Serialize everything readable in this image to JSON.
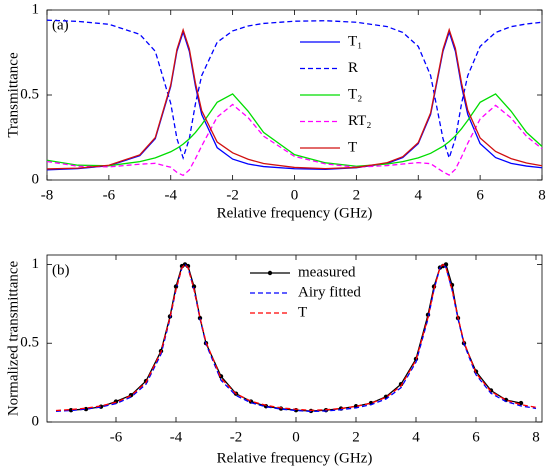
{
  "chart_data": [
    {
      "type": "line",
      "panel_label": "(a)",
      "xlabel": "Relative frequency (GHz)",
      "ylabel": "Transmittance",
      "xlim": [
        -8,
        8
      ],
      "ylim": [
        0,
        1
      ],
      "xticks": [
        -8,
        -6,
        -4,
        -2,
        0,
        2,
        4,
        6,
        8
      ],
      "yticks": [
        0,
        0.5,
        1
      ],
      "legend": "top-center",
      "x": [
        -8,
        -7,
        -6,
        -5,
        -4.5,
        -4,
        -3.8,
        -3.6,
        -3.4,
        -3.2,
        -3,
        -2.5,
        -2,
        -1.5,
        -1,
        0,
        1,
        2,
        3,
        3.5,
        4,
        4.4,
        4.8,
        5,
        5.2,
        5.4,
        5.6,
        6,
        6.5,
        7,
        7.5,
        8
      ],
      "series": [
        {
          "name": "T₁",
          "color": "#0000ff",
          "style": "solid",
          "values": [
            0.06,
            0.067,
            0.084,
            0.143,
            0.243,
            0.55,
            0.757,
            0.87,
            0.757,
            0.55,
            0.386,
            0.19,
            0.123,
            0.094,
            0.079,
            0.066,
            0.063,
            0.072,
            0.098,
            0.132,
            0.214,
            0.386,
            0.757,
            0.87,
            0.757,
            0.55,
            0.386,
            0.214,
            0.132,
            0.098,
            0.082,
            0.072
          ]
        },
        {
          "name": "R",
          "color": "#0000ff",
          "style": "dashed",
          "values": [
            0.94,
            0.933,
            0.916,
            0.857,
            0.757,
            0.45,
            0.243,
            0.13,
            0.243,
            0.45,
            0.614,
            0.81,
            0.877,
            0.906,
            0.921,
            0.934,
            0.937,
            0.928,
            0.902,
            0.868,
            0.786,
            0.614,
            0.243,
            0.13,
            0.243,
            0.45,
            0.614,
            0.786,
            0.868,
            0.902,
            0.918,
            0.928
          ]
        },
        {
          "name": "T₂",
          "color": "#00dd00",
          "style": "solid",
          "values": [
            0.116,
            0.087,
            0.084,
            0.108,
            0.13,
            0.166,
            0.186,
            0.211,
            0.242,
            0.28,
            0.326,
            0.457,
            0.506,
            0.405,
            0.28,
            0.149,
            0.101,
            0.081,
            0.094,
            0.108,
            0.13,
            0.157,
            0.198,
            0.226,
            0.26,
            0.302,
            0.351,
            0.457,
            0.506,
            0.405,
            0.28,
            0.198
          ]
        },
        {
          "name": "RT₂",
          "color": "#ff00ff",
          "style": "dashed",
          "values": [
            0.109,
            0.081,
            0.077,
            0.093,
            0.098,
            0.075,
            0.045,
            0.027,
            0.059,
            0.126,
            0.2,
            0.37,
            0.444,
            0.367,
            0.258,
            0.139,
            0.095,
            0.075,
            0.085,
            0.094,
            0.102,
            0.096,
            0.048,
            0.029,
            0.063,
            0.136,
            0.216,
            0.359,
            0.439,
            0.365,
            0.257,
            0.184
          ]
        },
        {
          "name": "T",
          "color": "#d01010",
          "style": "solid",
          "values": [
            0.065,
            0.07,
            0.087,
            0.148,
            0.25,
            0.56,
            0.768,
            0.883,
            0.772,
            0.568,
            0.408,
            0.223,
            0.16,
            0.122,
            0.097,
            0.074,
            0.067,
            0.074,
            0.102,
            0.137,
            0.22,
            0.395,
            0.769,
            0.884,
            0.774,
            0.57,
            0.41,
            0.247,
            0.168,
            0.126,
            0.1,
            0.084
          ]
        }
      ]
    },
    {
      "type": "line",
      "panel_label": "(b)",
      "xlabel": "Relative frequency (GHz)",
      "ylabel": "Normalized transmittance",
      "xlim": [
        -8.3,
        8.2
      ],
      "ylim": [
        0,
        1.06
      ],
      "xticks": [
        -6,
        -4,
        -2,
        0,
        2,
        4,
        6,
        8
      ],
      "yticks": [
        0,
        0.5,
        1
      ],
      "legend": "top-center",
      "x": [
        -8,
        -7.5,
        -7,
        -6.5,
        -6,
        -5.5,
        -5,
        -4.5,
        -4.2,
        -4,
        -3.8,
        -3.7,
        -3.6,
        -3.4,
        -3.2,
        -3,
        -2.5,
        -2,
        -1.5,
        -1,
        -0.5,
        0,
        0.5,
        1,
        1.5,
        2,
        2.5,
        3,
        3.5,
        4,
        4.4,
        4.6,
        4.8,
        4.9,
        5,
        5.2,
        5.4,
        5.6,
        6,
        6.5,
        7,
        7.5,
        8
      ],
      "series": [
        {
          "name": "measured",
          "color": "#000000",
          "style": "solid",
          "marker": "circle",
          "values": [
            null,
            0.075,
            0.082,
            0.097,
            0.13,
            0.17,
            0.26,
            0.45,
            0.67,
            0.86,
            0.99,
            1,
            0.99,
            0.86,
            0.66,
            0.5,
            0.29,
            0.18,
            0.13,
            0.1,
            0.085,
            0.075,
            0.07,
            0.075,
            0.085,
            0.1,
            0.12,
            0.16,
            0.24,
            0.4,
            0.68,
            0.86,
            0.98,
            0.99,
            1,
            0.87,
            0.66,
            0.5,
            0.32,
            0.2,
            0.14,
            0.12,
            null
          ]
        },
        {
          "name": "Airy fitted",
          "color": "#0000ff",
          "style": "dashed",
          "values": [
            0.068,
            0.073,
            0.082,
            0.095,
            0.117,
            0.158,
            0.24,
            0.43,
            0.655,
            0.84,
            0.98,
            1,
            0.98,
            0.84,
            0.655,
            0.495,
            0.265,
            0.168,
            0.122,
            0.097,
            0.082,
            0.073,
            0.067,
            0.07,
            0.078,
            0.09,
            0.11,
            0.146,
            0.218,
            0.38,
            0.655,
            0.84,
            0.98,
            1,
            0.98,
            0.84,
            0.655,
            0.495,
            0.3,
            0.182,
            0.13,
            0.102,
            0.086
          ]
        },
        {
          "name": "T",
          "color": "#ff0000",
          "style": "dashed",
          "values": [
            0.073,
            0.079,
            0.088,
            0.102,
            0.125,
            0.167,
            0.251,
            0.445,
            0.663,
            0.843,
            0.98,
            1,
            0.98,
            0.843,
            0.663,
            0.507,
            0.278,
            0.179,
            0.132,
            0.106,
            0.09,
            0.081,
            0.074,
            0.078,
            0.086,
            0.099,
            0.119,
            0.156,
            0.229,
            0.392,
            0.663,
            0.843,
            0.98,
            1,
            0.98,
            0.843,
            0.663,
            0.507,
            0.31,
            0.193,
            0.139,
            0.11,
            0.093
          ]
        }
      ]
    }
  ]
}
